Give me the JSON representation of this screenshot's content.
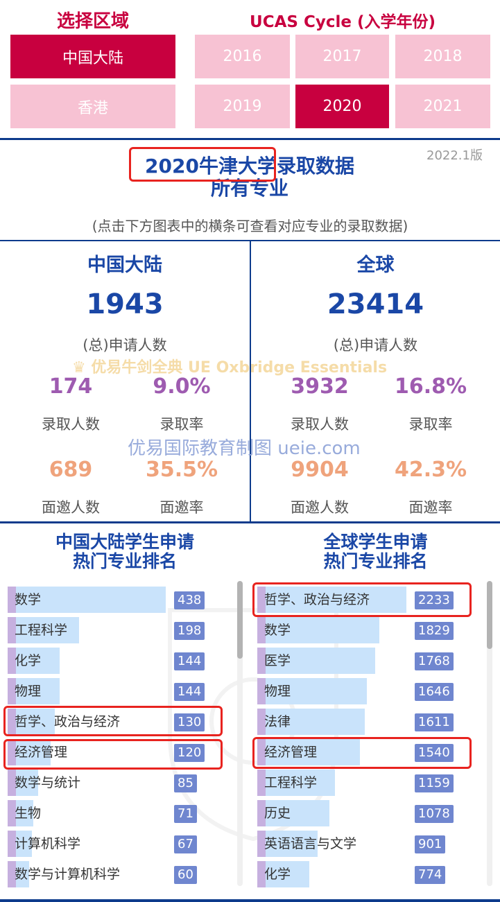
{
  "region": {
    "title": "选择区域",
    "options": [
      "中国大陆",
      "香港"
    ],
    "selected": "中国大陆"
  },
  "cycle": {
    "title": "UCAS Cycle (入学年份)",
    "years": [
      "2016",
      "2017",
      "2018",
      "2019",
      "2020",
      "2021"
    ],
    "selected": "2020"
  },
  "version": "2022.1版",
  "main_title_line1": "2020牛津大学录取数据",
  "main_title_line2": "所有专业",
  "hint": "(点击下方图表中的横条可查看对应专业的录取数据)",
  "mainland": {
    "heading": "中国大陆",
    "applicants": "1943",
    "applicants_label": "(总)申请人数",
    "admitted": "174",
    "admitted_label": "录取人数",
    "admit_rate": "9.0%",
    "admit_rate_label": "录取率",
    "interviewed": "689",
    "interviewed_label": "面邀人数",
    "interview_rate": "35.5%",
    "interview_rate_label": "面邀率"
  },
  "global": {
    "heading": "全球",
    "applicants": "23414",
    "applicants_label": "(总)申请人数",
    "admitted": "3932",
    "admitted_label": "录取人数",
    "admit_rate": "16.8%",
    "admit_rate_label": "录取率",
    "interviewed": "9904",
    "interviewed_label": "面邀人数",
    "interview_rate": "42.3%",
    "interview_rate_label": "面邀率"
  },
  "watermark_1": "优易牛剑全典 UE Oxbridge Essentials",
  "watermark_2": "优易国际教育制图 ueie.com",
  "mainland_ranking": {
    "title_line1": "中国大陆学生申请",
    "title_line2": "热门专业排名",
    "items": [
      {
        "label": "数学",
        "value": "438"
      },
      {
        "label": "工程科学",
        "value": "198"
      },
      {
        "label": "化学",
        "value": "144"
      },
      {
        "label": "物理",
        "value": "144"
      },
      {
        "label": "哲学、政治与经济",
        "value": "130"
      },
      {
        "label": "经济管理",
        "value": "120"
      },
      {
        "label": "数学与统计",
        "value": "85"
      },
      {
        "label": "生物",
        "value": "71"
      },
      {
        "label": "计算机科学",
        "value": "67"
      },
      {
        "label": "数学与计算机科学",
        "value": "60"
      }
    ]
  },
  "global_ranking": {
    "title_line1": "全球学生申请",
    "title_line2": "热门专业排名",
    "items": [
      {
        "label": "哲学、政治与经济",
        "value": "2233"
      },
      {
        "label": "数学",
        "value": "1829"
      },
      {
        "label": "医学",
        "value": "1768"
      },
      {
        "label": "物理",
        "value": "1646"
      },
      {
        "label": "法律",
        "value": "1611"
      },
      {
        "label": "经济管理",
        "value": "1540"
      },
      {
        "label": "工程科学",
        "value": "1159"
      },
      {
        "label": "历史",
        "value": "1078"
      },
      {
        "label": "英语语言与文学",
        "value": "901"
      },
      {
        "label": "化学",
        "value": "774"
      }
    ]
  },
  "colors": {
    "selected_button": "#c8003f",
    "unselected_button": "#f7c2d3",
    "title_blue": "#1a47a6",
    "bar_blue": "#c9e3fb",
    "badge": "#6f86cf",
    "highlight_box": "#e8231f"
  }
}
